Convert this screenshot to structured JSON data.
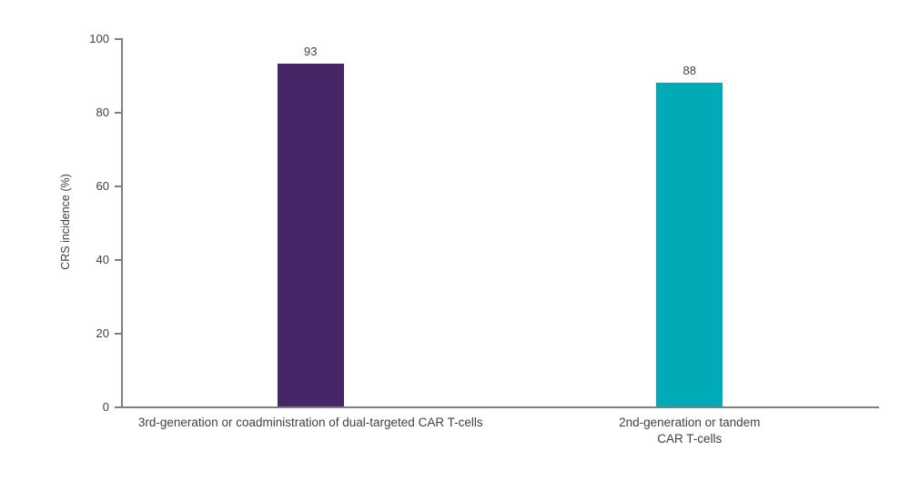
{
  "chart_data": {
    "type": "bar",
    "categories": [
      "3rd-generation or coadministration of dual-targeted CAR T-cells",
      "2nd-generation or tandem\nCAR T-cells"
    ],
    "values": [
      93,
      88
    ],
    "value_labels": [
      "93",
      "88"
    ],
    "bar_colors": [
      "#462667",
      "#00abb8"
    ],
    "ylabel": "CRS incidence (%)",
    "xlabel": "",
    "ylim": [
      0,
      100
    ],
    "yticks": [
      0,
      20,
      40,
      60,
      80,
      100
    ],
    "grid": false,
    "legend": null,
    "axis_color": "#7f7f7f",
    "text_color": "#404040",
    "background_color": "#ffffff"
  }
}
